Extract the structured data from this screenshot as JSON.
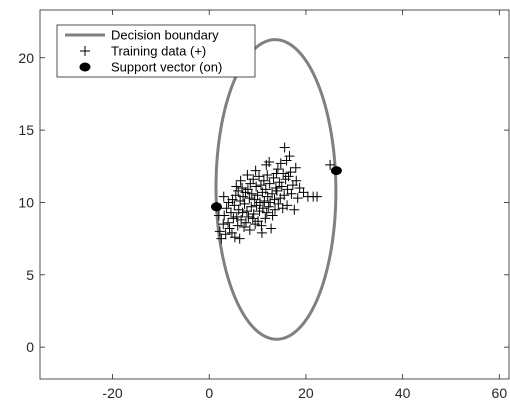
{
  "chart_data": {
    "type": "scatter",
    "title": "",
    "xlabel": "",
    "ylabel": "",
    "xlim": [
      -35,
      62
    ],
    "ylim": [
      -2.2,
      23.3
    ],
    "xticks": [
      -20,
      0,
      20,
      40,
      60
    ],
    "yticks": [
      0,
      5,
      10,
      15,
      20
    ],
    "legend_position": "top-left",
    "colors": {
      "boundary": "#808080",
      "points": "#000000"
    },
    "legend": [
      {
        "label": "Decision boundary",
        "marker": "line"
      },
      {
        "label": "Training data (+)",
        "marker": "plus"
      },
      {
        "label": "Support vector (on)",
        "marker": "dot"
      }
    ],
    "boundary": {
      "center_x": 13.8,
      "center_y": 10.9,
      "semi_axis_x": 12.4,
      "semi_axis_y": 10.35,
      "rotation_deg": -2
    },
    "training_points": [
      [
        1.5,
        9.7
      ],
      [
        2.2,
        8.0
      ],
      [
        2.5,
        7.5
      ],
      [
        2.9,
        8.5
      ],
      [
        3.1,
        9.1
      ],
      [
        3.4,
        7.8
      ],
      [
        3.6,
        9.6
      ],
      [
        3.9,
        8.6
      ],
      [
        4.0,
        10.0
      ],
      [
        4.2,
        8.2
      ],
      [
        4.5,
        9.3
      ],
      [
        4.7,
        7.9
      ],
      [
        4.8,
        10.2
      ],
      [
        5.0,
        8.9
      ],
      [
        5.2,
        9.8
      ],
      [
        5.3,
        7.6
      ],
      [
        5.5,
        10.5
      ],
      [
        5.7,
        9.0
      ],
      [
        5.9,
        8.4
      ],
      [
        6.0,
        10.8
      ],
      [
        6.1,
        9.5
      ],
      [
        6.3,
        7.5
      ],
      [
        6.4,
        10.1
      ],
      [
        6.6,
        8.8
      ],
      [
        6.8,
        11.0
      ],
      [
        6.9,
        9.3
      ],
      [
        7.0,
        10.4
      ],
      [
        7.2,
        8.3
      ],
      [
        7.3,
        9.9
      ],
      [
        7.5,
        10.7
      ],
      [
        7.6,
        8.6
      ],
      [
        7.8,
        9.4
      ],
      [
        8.0,
        10.9
      ],
      [
        8.1,
        9.0
      ],
      [
        8.3,
        10.3
      ],
      [
        8.4,
        8.1
      ],
      [
        8.5,
        11.3
      ],
      [
        8.7,
        9.7
      ],
      [
        8.8,
        10.6
      ],
      [
        9.0,
        8.9
      ],
      [
        9.1,
        11.6
      ],
      [
        9.2,
        9.2
      ],
      [
        9.4,
        10.2
      ],
      [
        9.5,
        8.5
      ],
      [
        9.7,
        11.1
      ],
      [
        9.8,
        9.8
      ],
      [
        10.0,
        10.5
      ],
      [
        10.1,
        8.7
      ],
      [
        10.3,
        11.8
      ],
      [
        10.4,
        9.4
      ],
      [
        10.5,
        10.0
      ],
      [
        10.7,
        11.2
      ],
      [
        10.8,
        8.4
      ],
      [
        11.0,
        10.7
      ],
      [
        11.1,
        9.6
      ],
      [
        11.3,
        11.5
      ],
      [
        11.4,
        10.1
      ],
      [
        11.6,
        8.9
      ],
      [
        11.7,
        10.9
      ],
      [
        11.9,
        9.3
      ],
      [
        12.0,
        11.9
      ],
      [
        12.1,
        10.4
      ],
      [
        12.3,
        9.7
      ],
      [
        12.5,
        11.3
      ],
      [
        12.6,
        10.0
      ],
      [
        12.8,
        8.2
      ],
      [
        13.0,
        10.6
      ],
      [
        13.1,
        9.1
      ],
      [
        13.3,
        11.7
      ],
      [
        13.5,
        10.2
      ],
      [
        13.6,
        9.5
      ],
      [
        13.8,
        11.0
      ],
      [
        14.0,
        10.8
      ],
      [
        14.2,
        12.3
      ],
      [
        14.3,
        9.9
      ],
      [
        14.5,
        11.4
      ],
      [
        14.7,
        10.3
      ],
      [
        14.8,
        12.7
      ],
      [
        15.0,
        11.1
      ],
      [
        15.2,
        9.6
      ],
      [
        15.3,
        12.0
      ],
      [
        15.5,
        10.5
      ],
      [
        15.6,
        13.8
      ],
      [
        15.8,
        11.6
      ],
      [
        16.0,
        12.9
      ],
      [
        16.2,
        10.9
      ],
      [
        16.4,
        11.8
      ],
      [
        16.6,
        13.2
      ],
      [
        16.8,
        12.1
      ],
      [
        17.0,
        10.6
      ],
      [
        17.3,
        11.2
      ],
      [
        17.6,
        9.5
      ],
      [
        17.9,
        12.4
      ],
      [
        18.3,
        10.3
      ],
      [
        18.7,
        11.0
      ],
      [
        19.5,
        10.7
      ],
      [
        20.4,
        10.4
      ],
      [
        21.5,
        10.4
      ],
      [
        22.3,
        10.4
      ],
      [
        25.0,
        12.6
      ],
      [
        3.0,
        10.4
      ],
      [
        2.0,
        9.1
      ],
      [
        6.5,
        11.5
      ],
      [
        9.6,
        12.2
      ],
      [
        11.8,
        12.6
      ],
      [
        13.9,
        12.0
      ],
      [
        16.1,
        9.8
      ],
      [
        18.0,
        11.5
      ],
      [
        7.9,
        11.9
      ],
      [
        5.6,
        11.1
      ],
      [
        10.9,
        7.9
      ],
      [
        12.4,
        12.8
      ]
    ],
    "support_vectors": [
      [
        1.5,
        9.7
      ],
      [
        26.3,
        12.2
      ]
    ]
  }
}
